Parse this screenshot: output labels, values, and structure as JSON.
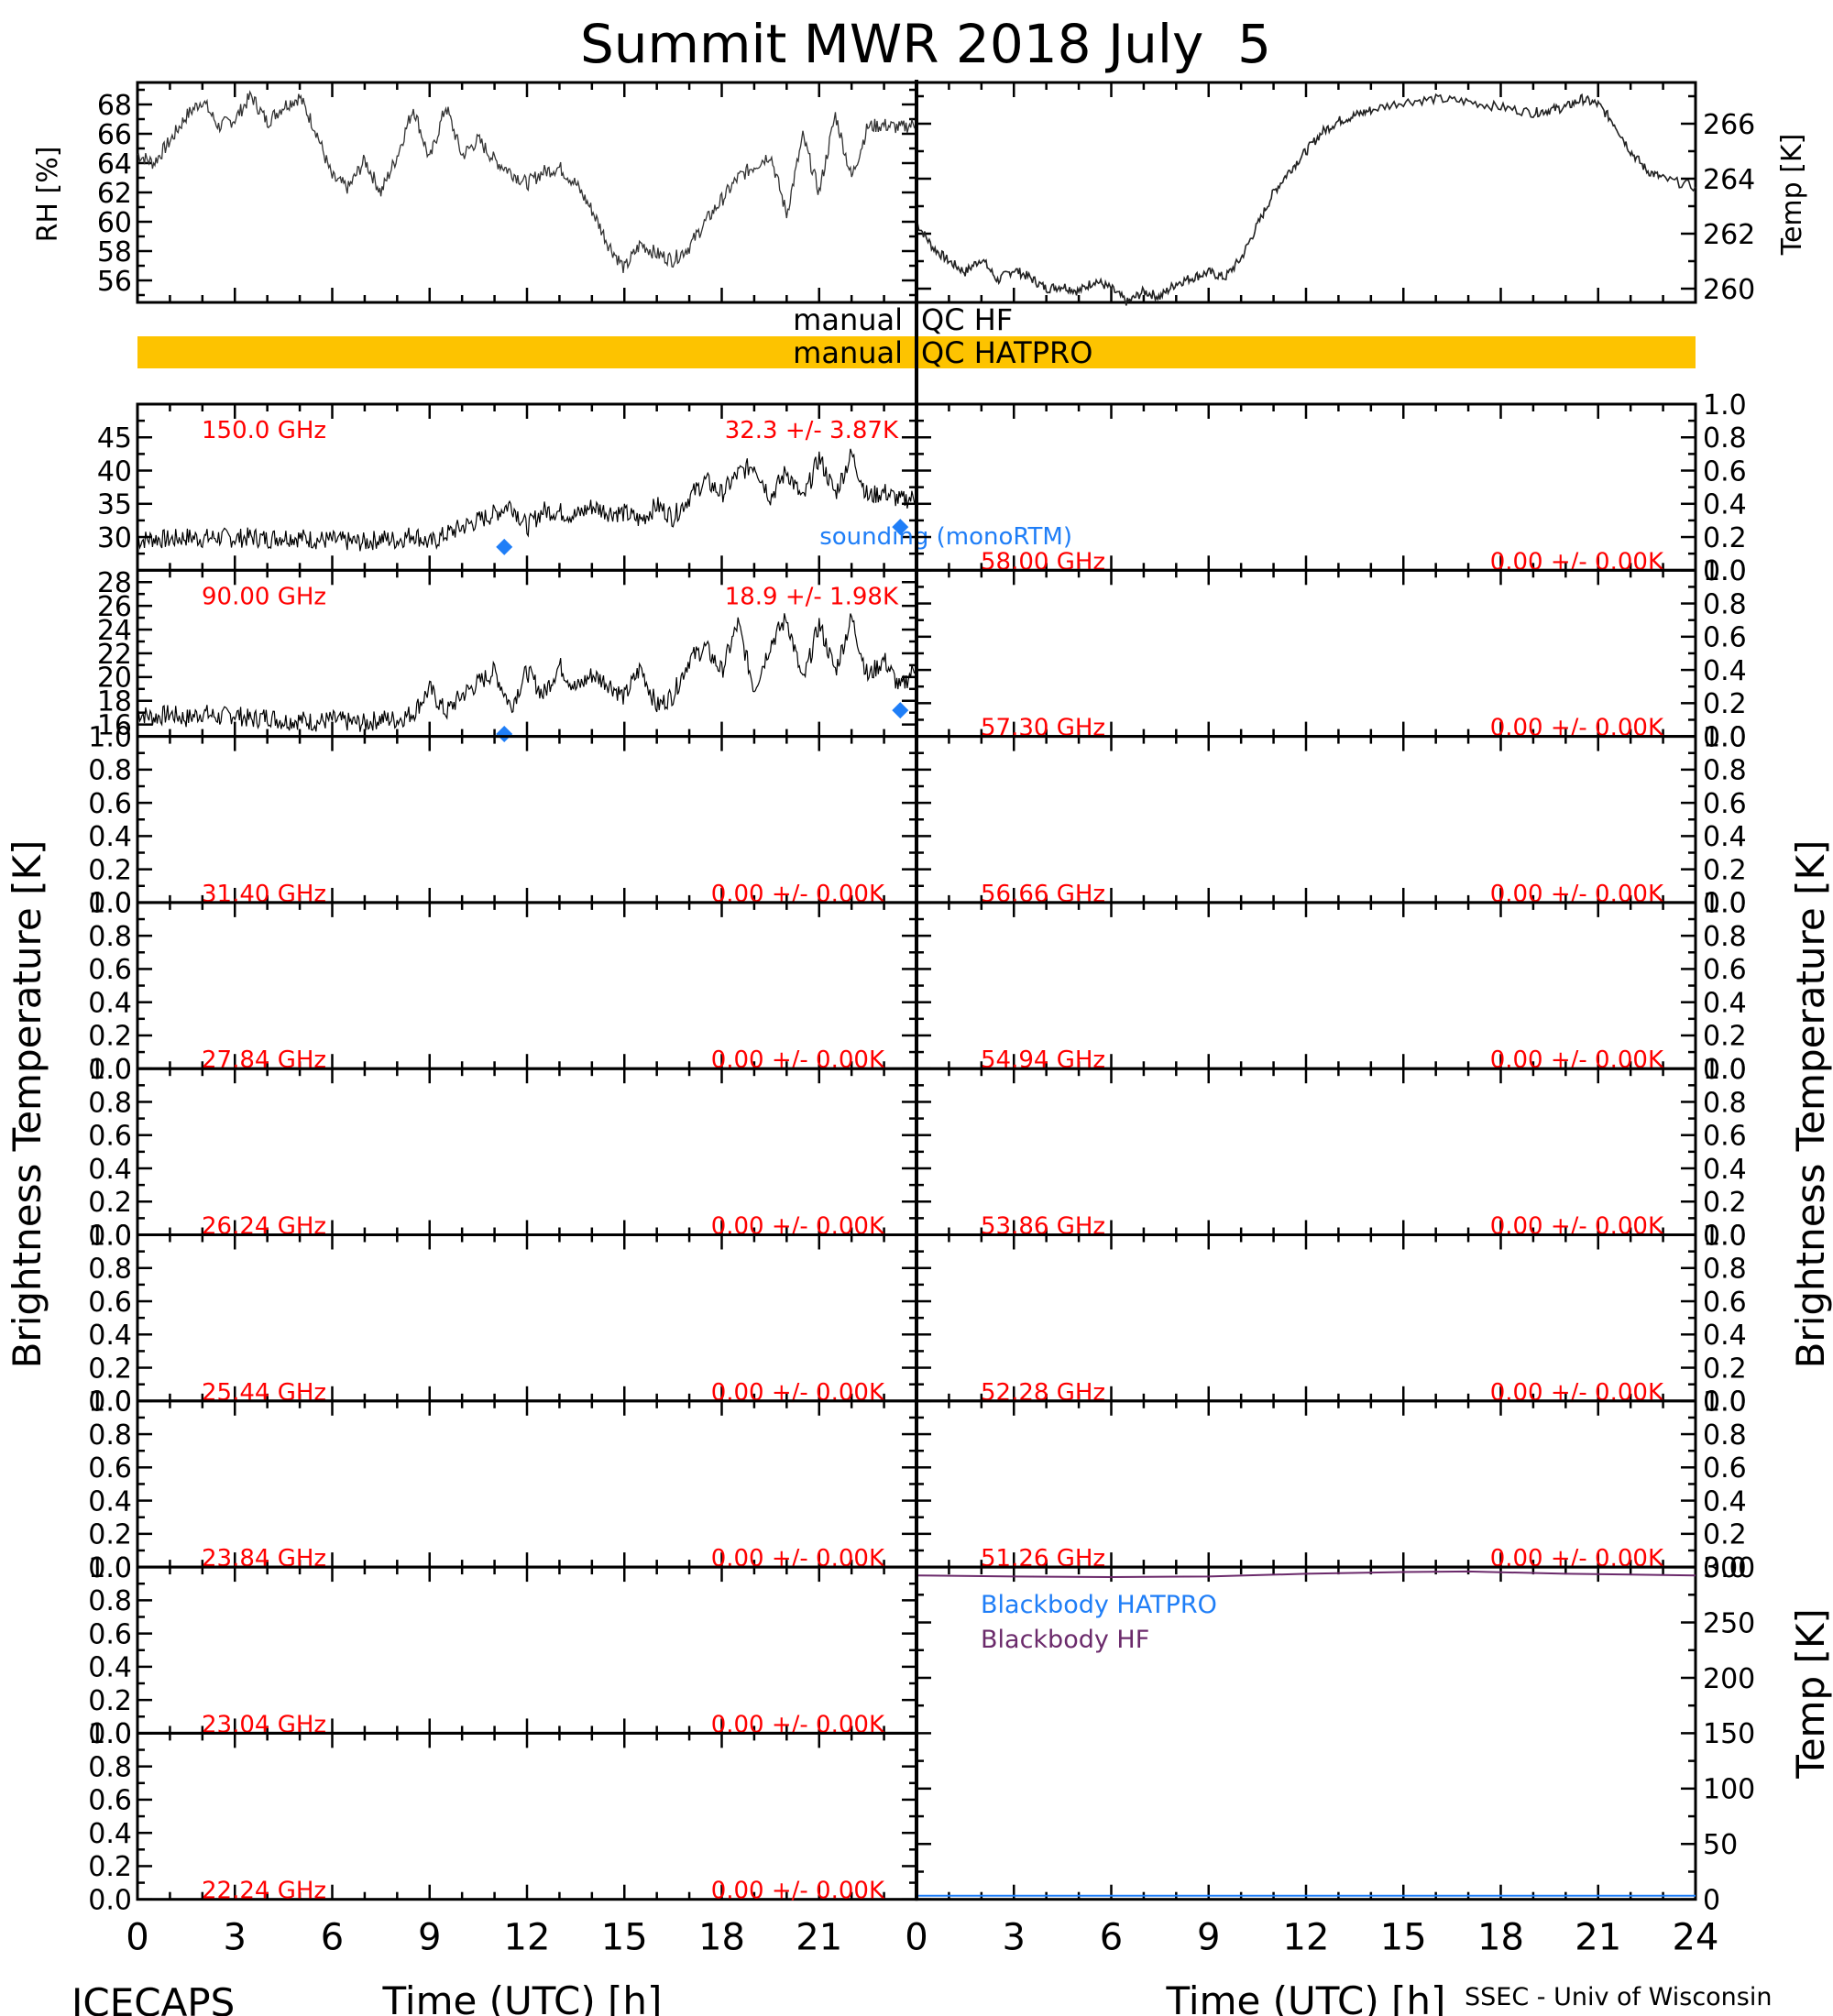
{
  "page": {
    "title": "Summit MWR 2018 July  5",
    "footer_left": "ICECAPS",
    "footer_right": "SSEC - Univ of Wisconsin",
    "xlabel": "Time (UTC) [h]",
    "bt_ylabel": "Brightness Temperature [K]",
    "bb_ylabel": "Temp [K]"
  },
  "colors": {
    "trace": "#000000",
    "label_red": "#ff0000",
    "sounding_blue": "#1f7ef7",
    "qc_bar": "#fdc300",
    "blackbody_purple": "#6b2a6b"
  },
  "qc": {
    "hf_label": "manual",
    "hf_text": "QC HF",
    "hatpro_label": "manual",
    "hatpro_text": "QC HATPRO",
    "hatpro_bar": "full-day"
  },
  "chart_data": [
    {
      "id": "rh",
      "type": "scatter",
      "ylabel": "RH [%]",
      "xlim": [
        0,
        24
      ],
      "ylim": [
        54.5,
        69.5
      ],
      "yticks": [
        56,
        58,
        60,
        62,
        64,
        66,
        68
      ],
      "xticks": [
        0,
        3,
        6,
        9,
        12,
        15,
        18,
        21
      ],
      "points": [
        [
          0,
          64.6
        ],
        [
          0.5,
          64.0
        ],
        [
          1,
          65.5
        ],
        [
          1.5,
          67.2
        ],
        [
          2,
          68.3
        ],
        [
          2.5,
          66.5
        ],
        [
          3,
          67.0
        ],
        [
          3.5,
          68.6
        ],
        [
          4,
          66.8
        ],
        [
          4.5,
          67.9
        ],
        [
          5,
          68.5
        ],
        [
          5.5,
          66.2
        ],
        [
          6,
          63.0
        ],
        [
          6.5,
          62.3
        ],
        [
          7,
          64.2
        ],
        [
          7.5,
          62.0
        ],
        [
          8,
          64.5
        ],
        [
          8.5,
          67.8
        ],
        [
          9,
          64.2
        ],
        [
          9.5,
          67.9
        ],
        [
          10,
          64.5
        ],
        [
          10.5,
          65.6
        ],
        [
          11,
          64.2
        ],
        [
          11.5,
          63.4
        ],
        [
          12,
          62.6
        ],
        [
          12.5,
          63.4
        ],
        [
          13,
          63.7
        ],
        [
          13.5,
          62.6
        ],
        [
          14,
          60.8
        ],
        [
          14.5,
          58.5
        ],
        [
          15,
          56.8
        ],
        [
          15.5,
          58.5
        ],
        [
          16,
          57.8
        ],
        [
          16.5,
          57.4
        ],
        [
          17,
          58.3
        ],
        [
          17.5,
          60.0
        ],
        [
          18,
          61.5
        ],
        [
          18.5,
          63.0
        ],
        [
          19,
          63.8
        ],
        [
          19.5,
          64.6
        ],
        [
          20,
          60.5
        ],
        [
          20.5,
          65.8
        ],
        [
          21,
          62.0
        ],
        [
          21.5,
          67.3
        ],
        [
          22,
          63.0
        ],
        [
          22.5,
          66.5
        ],
        [
          23,
          66.6
        ],
        [
          23.5,
          66.4
        ],
        [
          24,
          66.7
        ]
      ]
    },
    {
      "id": "sfc_temp",
      "type": "scatter",
      "ylabel": "Temp [K]",
      "xlim": [
        0,
        24
      ],
      "ylim": [
        259.5,
        267.5
      ],
      "yticks": [
        260,
        262,
        264,
        266
      ],
      "points": [
        [
          0,
          262.4
        ],
        [
          0.5,
          261.5
        ],
        [
          1,
          261.0
        ],
        [
          1.5,
          260.6
        ],
        [
          2,
          261.1
        ],
        [
          2.5,
          260.3
        ],
        [
          3,
          260.7
        ],
        [
          3.5,
          260.4
        ],
        [
          4,
          260.0
        ],
        [
          4.5,
          260.1
        ],
        [
          5,
          259.9
        ],
        [
          5.5,
          260.3
        ],
        [
          6,
          260.0
        ],
        [
          6.5,
          259.5
        ],
        [
          7,
          259.9
        ],
        [
          7.5,
          259.7
        ],
        [
          8,
          260.2
        ],
        [
          8.5,
          260.4
        ],
        [
          9,
          260.6
        ],
        [
          9.5,
          260.4
        ],
        [
          10,
          261.1
        ],
        [
          10.5,
          262.3
        ],
        [
          11,
          263.5
        ],
        [
          11.5,
          264.3
        ],
        [
          12,
          265.0
        ],
        [
          12.5,
          265.7
        ],
        [
          13,
          266.1
        ],
        [
          13.5,
          266.3
        ],
        [
          14,
          266.5
        ],
        [
          15,
          266.8
        ],
        [
          16,
          266.9
        ],
        [
          17,
          266.8
        ],
        [
          18,
          266.6
        ],
        [
          19,
          266.4
        ],
        [
          19.5,
          266.5
        ],
        [
          20,
          266.6
        ],
        [
          20.5,
          266.9
        ],
        [
          21,
          266.7
        ],
        [
          21.5,
          266.0
        ],
        [
          22,
          265.0
        ],
        [
          22.5,
          264.3
        ],
        [
          23,
          264.0
        ],
        [
          24,
          263.7
        ]
      ]
    },
    {
      "id": "tb_150",
      "type": "line",
      "freq_label": "150.0 GHz",
      "stats_label": "32.3 +/-  3.87K",
      "note": "sounding (monoRTM)",
      "xlim": [
        0,
        24
      ],
      "ylim": [
        25,
        50
      ],
      "yticks": [
        30,
        35,
        40,
        45
      ],
      "values": [
        [
          0,
          29.5
        ],
        [
          0.5,
          29.8
        ],
        [
          1,
          29.6
        ],
        [
          1.5,
          30.0
        ],
        [
          2,
          29.8
        ],
        [
          2.5,
          30.0
        ],
        [
          3,
          29.8
        ],
        [
          3.5,
          30.0
        ],
        [
          4,
          29.7
        ],
        [
          4.5,
          30.1
        ],
        [
          5,
          29.9
        ],
        [
          5.5,
          29.6
        ],
        [
          6,
          29.5
        ],
        [
          6.5,
          29.3
        ],
        [
          7,
          29.2
        ],
        [
          7.5,
          29.8
        ],
        [
          8,
          29.5
        ],
        [
          8.5,
          30.5
        ],
        [
          9,
          29.0
        ],
        [
          9.5,
          30.4
        ],
        [
          10,
          31.5
        ],
        [
          10.5,
          32.5
        ],
        [
          11,
          33.5
        ],
        [
          11.5,
          35.0
        ],
        [
          12,
          31.5
        ],
        [
          12.5,
          34.0
        ],
        [
          13,
          33.8
        ],
        [
          13.5,
          33.2
        ],
        [
          14,
          34.6
        ],
        [
          14.5,
          33.8
        ],
        [
          15,
          33.6
        ],
        [
          15.5,
          32.5
        ],
        [
          16,
          34.8
        ],
        [
          16.5,
          33.0
        ],
        [
          17,
          36.0
        ],
        [
          17.5,
          38.5
        ],
        [
          18,
          36.5
        ],
        [
          18.5,
          39.5
        ],
        [
          19,
          41.0
        ],
        [
          19.5,
          36.0
        ],
        [
          20,
          40.0
        ],
        [
          20.5,
          35.5
        ],
        [
          21,
          42.0
        ],
        [
          21.5,
          36.5
        ],
        [
          22,
          42.5
        ],
        [
          22.5,
          36.0
        ],
        [
          23,
          36.8
        ],
        [
          23.5,
          35.5
        ],
        [
          24,
          36.0
        ]
      ],
      "sounding": [
        [
          11.3,
          28.5
        ],
        [
          23.5,
          31.5
        ]
      ]
    },
    {
      "id": "tb_90",
      "type": "line",
      "freq_label": "90.00 GHz",
      "stats_label": "18.9 +/-  1.98K",
      "xlim": [
        0,
        24
      ],
      "ylim": [
        15,
        29
      ],
      "yticks": [
        16,
        18,
        20,
        22,
        24,
        26,
        28
      ],
      "values": [
        [
          0,
          17.0
        ],
        [
          0.5,
          16.6
        ],
        [
          1,
          16.9
        ],
        [
          1.5,
          16.5
        ],
        [
          2,
          17.0
        ],
        [
          2.5,
          16.6
        ],
        [
          3,
          16.9
        ],
        [
          3.5,
          16.4
        ],
        [
          4,
          16.7
        ],
        [
          4.5,
          16.3
        ],
        [
          5,
          16.4
        ],
        [
          5.5,
          16.2
        ],
        [
          6,
          16.4
        ],
        [
          6.5,
          16.2
        ],
        [
          7,
          16.1
        ],
        [
          7.5,
          16.5
        ],
        [
          8,
          16.4
        ],
        [
          8.5,
          17.0
        ],
        [
          9,
          19.0
        ],
        [
          9.5,
          17.0
        ],
        [
          10,
          18.5
        ],
        [
          10.5,
          19.5
        ],
        [
          11,
          20.5
        ],
        [
          11.5,
          17.5
        ],
        [
          12,
          20.5
        ],
        [
          12.5,
          18.5
        ],
        [
          13,
          21.0
        ],
        [
          13.5,
          19.0
        ],
        [
          14,
          20.2
        ],
        [
          14.5,
          19.5
        ],
        [
          15,
          18.3
        ],
        [
          15.5,
          20.8
        ],
        [
          16,
          17.5
        ],
        [
          16.5,
          18.5
        ],
        [
          17,
          21.5
        ],
        [
          17.5,
          22.5
        ],
        [
          18,
          20.5
        ],
        [
          18.5,
          24.5
        ],
        [
          19,
          19.0
        ],
        [
          19.5,
          22.8
        ],
        [
          20,
          25.0
        ],
        [
          20.5,
          19.5
        ],
        [
          21,
          24.5
        ],
        [
          21.5,
          20.5
        ],
        [
          22,
          25.0
        ],
        [
          22.5,
          20.0
        ],
        [
          23,
          21.5
        ],
        [
          23.5,
          19.0
        ],
        [
          24,
          21.0
        ]
      ],
      "sounding": [
        [
          11.3,
          15.2
        ],
        [
          23.5,
          17.2
        ]
      ]
    },
    {
      "id": "tb_left_3",
      "freq_label": "31.40 GHz",
      "stats_label": "0.00 +/-  0.00K",
      "ylim": [
        0,
        1
      ],
      "yticks": [
        0.0,
        0.2,
        0.4,
        0.6,
        0.8,
        1.0
      ]
    },
    {
      "id": "tb_left_4",
      "freq_label": "27.84 GHz",
      "stats_label": "0.00 +/-  0.00K",
      "ylim": [
        0,
        1
      ],
      "yticks": [
        0.0,
        0.2,
        0.4,
        0.6,
        0.8,
        1.0
      ]
    },
    {
      "id": "tb_left_5",
      "freq_label": "26.24 GHz",
      "stats_label": "0.00 +/-  0.00K",
      "ylim": [
        0,
        1
      ],
      "yticks": [
        0.0,
        0.2,
        0.4,
        0.6,
        0.8,
        1.0
      ]
    },
    {
      "id": "tb_left_6",
      "freq_label": "25.44 GHz",
      "stats_label": "0.00 +/-  0.00K",
      "ylim": [
        0,
        1
      ],
      "yticks": [
        0.0,
        0.2,
        0.4,
        0.6,
        0.8,
        1.0
      ]
    },
    {
      "id": "tb_left_7",
      "freq_label": "23.84 GHz",
      "stats_label": "0.00 +/-  0.00K",
      "ylim": [
        0,
        1
      ],
      "yticks": [
        0.0,
        0.2,
        0.4,
        0.6,
        0.8,
        1.0
      ]
    },
    {
      "id": "tb_left_8",
      "freq_label": "23.04 GHz",
      "stats_label": "0.00 +/-  0.00K",
      "ylim": [
        0,
        1
      ],
      "yticks": [
        0.0,
        0.2,
        0.4,
        0.6,
        0.8,
        1.0
      ]
    },
    {
      "id": "tb_left_9",
      "freq_label": "22.24 GHz",
      "stats_label": "0.00 +/-  0.00K",
      "ylim": [
        0,
        1
      ],
      "yticks": [
        0.0,
        0.2,
        0.4,
        0.6,
        0.8,
        1.0
      ]
    },
    {
      "id": "tb_right_1",
      "freq_label": "58.00 GHz",
      "stats_label": "0.00 +/-  0.00K",
      "ylim": [
        0,
        1
      ],
      "yticks": [
        0.0,
        0.2,
        0.4,
        0.6,
        0.8,
        1.0
      ]
    },
    {
      "id": "tb_right_2",
      "freq_label": "57.30 GHz",
      "stats_label": "0.00 +/-  0.00K",
      "ylim": [
        0,
        1
      ],
      "yticks": [
        0.0,
        0.2,
        0.4,
        0.6,
        0.8,
        1.0
      ]
    },
    {
      "id": "tb_right_3",
      "freq_label": "56.66 GHz",
      "stats_label": "0.00 +/-  0.00K",
      "ylim": [
        0,
        1
      ],
      "yticks": [
        0.0,
        0.2,
        0.4,
        0.6,
        0.8,
        1.0
      ]
    },
    {
      "id": "tb_right_4",
      "freq_label": "54.94 GHz",
      "stats_label": "0.00 +/-  0.00K",
      "ylim": [
        0,
        1
      ],
      "yticks": [
        0.0,
        0.2,
        0.4,
        0.6,
        0.8,
        1.0
      ]
    },
    {
      "id": "tb_right_5",
      "freq_label": "53.86 GHz",
      "stats_label": "0.00 +/-  0.00K",
      "ylim": [
        0,
        1
      ],
      "yticks": [
        0.0,
        0.2,
        0.4,
        0.6,
        0.8,
        1.0
      ]
    },
    {
      "id": "tb_right_6",
      "freq_label": "52.28 GHz",
      "stats_label": "0.00 +/-  0.00K",
      "ylim": [
        0,
        1
      ],
      "yticks": [
        0.0,
        0.2,
        0.4,
        0.6,
        0.8,
        1.0
      ]
    },
    {
      "id": "tb_right_7",
      "freq_label": "51.26 GHz",
      "stats_label": "0.00 +/-  0.00K",
      "ylim": [
        0,
        1
      ],
      "yticks": [
        0.0,
        0.2,
        0.4,
        0.6,
        0.8,
        1.0
      ]
    },
    {
      "id": "blackbody",
      "type": "line",
      "ylabel": "Temp [K]",
      "xlim": [
        0,
        24
      ],
      "ylim": [
        0,
        300
      ],
      "yticks": [
        0,
        50,
        100,
        150,
        200,
        250,
        300
      ],
      "xticks": [
        0,
        3,
        6,
        9,
        12,
        15,
        18,
        21,
        24
      ],
      "series": [
        {
          "name": "Blackbody HATPRO",
          "values": []
        },
        {
          "name": "Blackbody HF",
          "values": [
            [
              0,
              292.5
            ],
            [
              3,
              291.5
            ],
            [
              6,
              291.0
            ],
            [
              9,
              291.5
            ],
            [
              12,
              294.0
            ],
            [
              15,
              295.5
            ],
            [
              17,
              296.0
            ],
            [
              20,
              294.0
            ],
            [
              24,
              292.5
            ]
          ]
        }
      ]
    }
  ]
}
